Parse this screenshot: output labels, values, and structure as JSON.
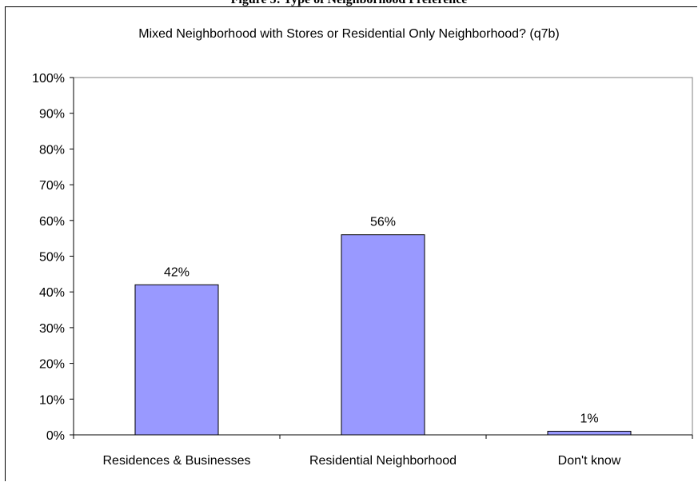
{
  "figure_caption": "Figure 5: Type of Neighborhood Preference",
  "chart_data": {
    "type": "bar",
    "title": "Mixed Neighborhood with Stores or Residential Only Neighborhood? (q7b)",
    "categories": [
      "Residences & Businesses",
      "Residential Neighborhood",
      "Don't know"
    ],
    "values": [
      42,
      56,
      1
    ],
    "data_labels": [
      "42%",
      "56%",
      "1%"
    ],
    "xlabel": "",
    "ylabel": "",
    "ylim": [
      0,
      100
    ],
    "yticks": [
      "0%",
      "10%",
      "20%",
      "30%",
      "40%",
      "50%",
      "60%",
      "70%",
      "80%",
      "90%",
      "100%"
    ],
    "grid": false,
    "legend": "none",
    "bar_color": "#9999ff",
    "bar_edge_color": "#000000"
  }
}
